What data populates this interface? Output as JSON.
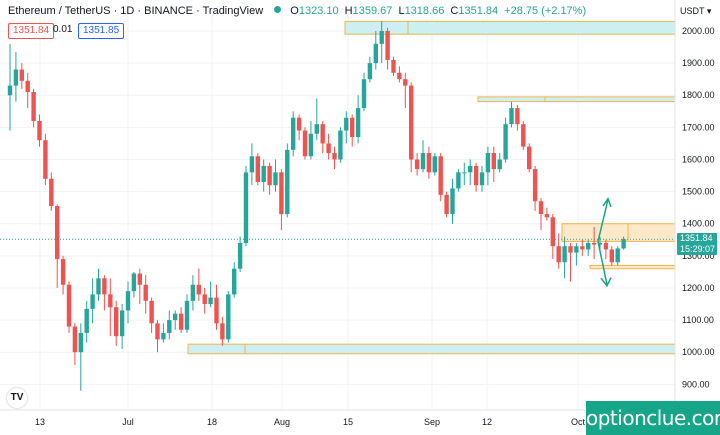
{
  "header": {
    "symbol": "Ethereum / TetherUS · 1D · BINANCE · TradingView",
    "ohlc": [
      {
        "k": "O",
        "v": "1323.10"
      },
      {
        "k": "H",
        "v": "1359.67"
      },
      {
        "k": "L",
        "v": "1318.66"
      },
      {
        "k": "C",
        "v": "1351.84"
      },
      {
        "k": "",
        "v": "+28.75 (+2.17%)"
      }
    ]
  },
  "trade": {
    "sell_price": "1351.84",
    "spread": "0.01",
    "buy_price": "1351.85"
  },
  "price_scale": {
    "currency": "USDT ▾",
    "ticks": [
      "2000.00",
      "1900.00",
      "1800.00",
      "1700.00",
      "1600.00",
      "1500.00",
      "1400.00",
      "1300.00",
      "1200.00",
      "1100.00",
      "1000.00",
      "900.00"
    ],
    "last_price": "1351.84",
    "countdown": "15:29:07"
  },
  "time_scale": {
    "ticks": [
      "13",
      "Jul",
      "18",
      "Aug",
      "15",
      "Sep",
      "12",
      "Oct"
    ]
  },
  "tv_logo": "TV",
  "watermark": "optionclue.com",
  "colors": {
    "up": "#26a69a",
    "down": "#ef5350",
    "zone_fill": "#cdeff2",
    "zone_fill_orange": "#fde8c7",
    "zone_border": "#f0b448",
    "arrow": "#17a589"
  },
  "chart_data": {
    "type": "candlestick",
    "title": "Ethereum / TetherUS · 1D · BINANCE",
    "ylim": [
      870,
      2060
    ],
    "yticks": [
      900,
      1000,
      1100,
      1200,
      1300,
      1400,
      1500,
      1600,
      1700,
      1800,
      1900,
      2000
    ],
    "xticks": [
      "13",
      "Jul",
      "18",
      "Aug",
      "15",
      "Sep",
      "12",
      "Oct"
    ],
    "candles": [
      [
        1800,
        1830,
        1960,
        1690
      ],
      [
        1830,
        1880,
        1935,
        1780
      ],
      [
        1880,
        1845,
        1900,
        1820
      ],
      [
        1845,
        1810,
        1870,
        1760
      ],
      [
        1810,
        1720,
        1820,
        1700
      ],
      [
        1720,
        1660,
        1740,
        1640
      ],
      [
        1660,
        1540,
        1680,
        1520
      ],
      [
        1540,
        1455,
        1560,
        1440
      ],
      [
        1455,
        1290,
        1460,
        1200
      ],
      [
        1290,
        1210,
        1300,
        1180
      ],
      [
        1210,
        1080,
        1220,
        1060
      ],
      [
        1080,
        1000,
        1090,
        960
      ],
      [
        1000,
        1060,
        1090,
        880
      ],
      [
        1060,
        1135,
        1160,
        1030
      ],
      [
        1135,
        1180,
        1230,
        1090
      ],
      [
        1180,
        1230,
        1260,
        1160
      ],
      [
        1230,
        1180,
        1240,
        1130
      ],
      [
        1180,
        1140,
        1230,
        1050
      ],
      [
        1140,
        1050,
        1160,
        1020
      ],
      [
        1050,
        1130,
        1150,
        1010
      ],
      [
        1130,
        1190,
        1220,
        1090
      ],
      [
        1190,
        1245,
        1250,
        1170
      ],
      [
        1245,
        1210,
        1260,
        1150
      ],
      [
        1210,
        1160,
        1240,
        1120
      ],
      [
        1160,
        1090,
        1170,
        1060
      ],
      [
        1090,
        1040,
        1100,
        1000
      ],
      [
        1040,
        1060,
        1090,
        1030
      ],
      [
        1060,
        1100,
        1130,
        1040
      ],
      [
        1100,
        1120,
        1130,
        1070
      ],
      [
        1120,
        1070,
        1140,
        1060
      ],
      [
        1070,
        1160,
        1180,
        1060
      ],
      [
        1160,
        1210,
        1240,
        1130
      ],
      [
        1210,
        1180,
        1260,
        1160
      ],
      [
        1180,
        1150,
        1200,
        1120
      ],
      [
        1150,
        1170,
        1220,
        1140
      ],
      [
        1170,
        1090,
        1210,
        1070
      ],
      [
        1090,
        1040,
        1110,
        1020
      ],
      [
        1040,
        1180,
        1190,
        1030
      ],
      [
        1180,
        1260,
        1280,
        1170
      ],
      [
        1260,
        1340,
        1360,
        1250
      ],
      [
        1340,
        1560,
        1580,
        1330
      ],
      [
        1560,
        1610,
        1650,
        1520
      ],
      [
        1610,
        1530,
        1620,
        1520
      ],
      [
        1530,
        1580,
        1600,
        1500
      ],
      [
        1580,
        1520,
        1590,
        1490
      ],
      [
        1520,
        1560,
        1600,
        1500
      ],
      [
        1560,
        1430,
        1570,
        1380
      ],
      [
        1430,
        1630,
        1650,
        1420
      ],
      [
        1630,
        1730,
        1750,
        1610
      ],
      [
        1730,
        1690,
        1740,
        1660
      ],
      [
        1690,
        1610,
        1700,
        1600
      ],
      [
        1610,
        1680,
        1720,
        1600
      ],
      [
        1680,
        1710,
        1790,
        1660
      ],
      [
        1710,
        1650,
        1720,
        1620
      ],
      [
        1650,
        1620,
        1680,
        1600
      ],
      [
        1620,
        1600,
        1640,
        1570
      ],
      [
        1600,
        1690,
        1700,
        1590
      ],
      [
        1690,
        1730,
        1750,
        1650
      ],
      [
        1730,
        1670,
        1740,
        1640
      ],
      [
        1670,
        1760,
        1800,
        1650
      ],
      [
        1760,
        1850,
        1870,
        1750
      ],
      [
        1850,
        1900,
        1920,
        1840
      ],
      [
        1900,
        1960,
        2000,
        1880
      ],
      [
        1960,
        2000,
        2030,
        1900
      ],
      [
        2000,
        1910,
        2010,
        1880
      ],
      [
        1910,
        1870,
        1920,
        1860
      ],
      [
        1870,
        1850,
        1890,
        1840
      ],
      [
        1850,
        1830,
        1870,
        1760
      ],
      [
        1830,
        1600,
        1840,
        1560
      ],
      [
        1600,
        1570,
        1620,
        1550
      ],
      [
        1570,
        1620,
        1660,
        1560
      ],
      [
        1620,
        1560,
        1640,
        1540
      ],
      [
        1560,
        1610,
        1620,
        1550
      ],
      [
        1610,
        1490,
        1620,
        1470
      ],
      [
        1490,
        1430,
        1500,
        1420
      ],
      [
        1430,
        1510,
        1540,
        1400
      ],
      [
        1510,
        1560,
        1570,
        1500
      ],
      [
        1560,
        1560,
        1590,
        1520
      ],
      [
        1560,
        1580,
        1600,
        1520
      ],
      [
        1580,
        1520,
        1590,
        1500
      ],
      [
        1520,
        1560,
        1580,
        1500
      ],
      [
        1560,
        1620,
        1640,
        1520
      ],
      [
        1620,
        1570,
        1640,
        1530
      ],
      [
        1570,
        1600,
        1620,
        1560
      ],
      [
        1600,
        1710,
        1730,
        1590
      ],
      [
        1710,
        1760,
        1780,
        1700
      ],
      [
        1760,
        1710,
        1770,
        1690
      ],
      [
        1710,
        1640,
        1720,
        1630
      ],
      [
        1640,
        1570,
        1650,
        1560
      ],
      [
        1570,
        1470,
        1580,
        1440
      ],
      [
        1470,
        1430,
        1480,
        1380
      ],
      [
        1430,
        1420,
        1450,
        1410
      ],
      [
        1420,
        1330,
        1430,
        1290
      ],
      [
        1330,
        1280,
        1370,
        1260
      ],
      [
        1280,
        1330,
        1360,
        1230
      ],
      [
        1330,
        1310,
        1340,
        1220
      ],
      [
        1310,
        1330,
        1340,
        1270
      ],
      [
        1330,
        1320,
        1350,
        1300
      ],
      [
        1320,
        1340,
        1350,
        1300
      ],
      [
        1340,
        1335,
        1390,
        1290
      ],
      [
        1335,
        1340,
        1360,
        1310
      ],
      [
        1340,
        1320,
        1350,
        1290
      ],
      [
        1320,
        1280,
        1330,
        1270
      ],
      [
        1280,
        1323,
        1330,
        1270
      ],
      [
        1323,
        1352,
        1360,
        1319
      ]
    ]
  }
}
